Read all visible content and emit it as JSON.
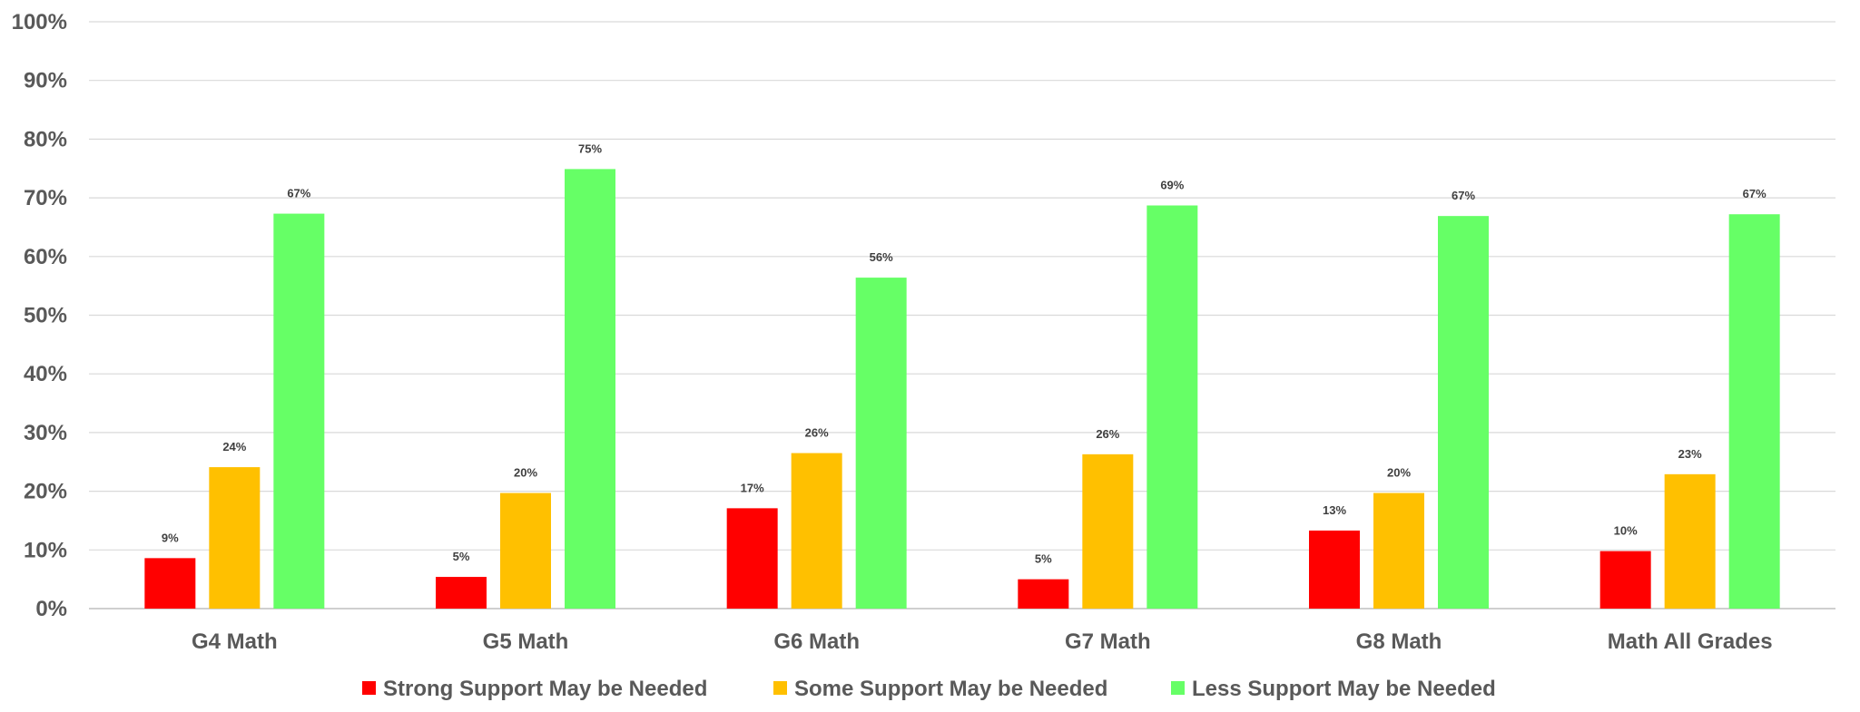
{
  "chart_data": {
    "type": "bar",
    "categories": [
      "G4 Math",
      "G5 Math",
      "G6 Math",
      "G7 Math",
      "G8 Math",
      "Math All Grades"
    ],
    "series": [
      {
        "name": "Strong Support May be Needed",
        "color": "#ff0000",
        "values": [
          8.6,
          5.4,
          17.1,
          5.0,
          13.3,
          9.8
        ],
        "labels": [
          "9%",
          "5%",
          "17%",
          "5%",
          "13%",
          "10%"
        ]
      },
      {
        "name": "Some Support May be Needed",
        "color": "#ffc000",
        "values": [
          24.1,
          19.7,
          26.5,
          26.3,
          19.7,
          22.9
        ],
        "labels": [
          "24%",
          "20%",
          "26%",
          "26%",
          "20%",
          "23%"
        ]
      },
      {
        "name": "Less Support May be Needed",
        "color": "#66ff66",
        "values": [
          67.3,
          74.9,
          56.4,
          68.7,
          66.9,
          67.2
        ],
        "labels": [
          "67%",
          "75%",
          "56%",
          "69%",
          "67%",
          "67%"
        ]
      }
    ],
    "y_ticks": [
      "0%",
      "10%",
      "20%",
      "30%",
      "40%",
      "50%",
      "60%",
      "70%",
      "80%",
      "90%",
      "100%"
    ],
    "ylim": [
      0,
      100
    ],
    "grid": true,
    "legend": "bottom"
  }
}
